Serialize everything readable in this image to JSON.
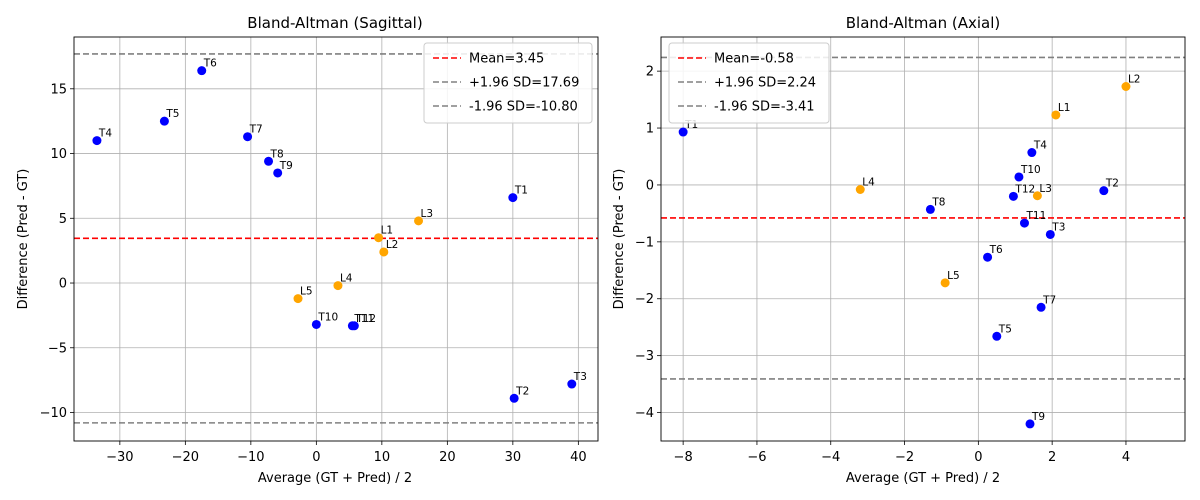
{
  "colors": {
    "thoracic": "#0000ff",
    "lumbar": "#ffa500",
    "mean_line": "#ff0000",
    "limit_line": "#808080",
    "grid": "#b0b0b0"
  },
  "chart_data": [
    {
      "type": "scatter",
      "title": "Bland-Altman (Sagittal)",
      "xlabel": "Average (GT + Pred) / 2",
      "ylabel": "Difference (Pred - GT)",
      "xlim": [
        -37,
        43
      ],
      "ylim": [
        -12.2,
        19.0
      ],
      "xticks": [
        -30,
        -20,
        -10,
        0,
        10,
        20,
        30,
        40
      ],
      "yticks": [
        -10,
        -5,
        0,
        5,
        10,
        15
      ],
      "grid": true,
      "legend_position": "top-right",
      "legend": [
        "Mean=3.45",
        "+1.96 SD=17.69",
        "-1.96 SD=-10.80"
      ],
      "mean": 3.45,
      "upper_loa": 17.69,
      "lower_loa": -10.8,
      "points": [
        {
          "label": "T1",
          "x": 30.0,
          "y": 6.6,
          "group": "thoracic"
        },
        {
          "label": "T2",
          "x": 30.2,
          "y": -8.9,
          "group": "thoracic"
        },
        {
          "label": "T3",
          "x": 39.0,
          "y": -7.8,
          "group": "thoracic"
        },
        {
          "label": "T4",
          "x": -33.5,
          "y": 11.0,
          "group": "thoracic"
        },
        {
          "label": "T5",
          "x": -23.2,
          "y": 12.5,
          "group": "thoracic"
        },
        {
          "label": "T6",
          "x": -17.5,
          "y": 16.4,
          "group": "thoracic"
        },
        {
          "label": "T7",
          "x": -10.5,
          "y": 11.3,
          "group": "thoracic"
        },
        {
          "label": "T8",
          "x": -7.3,
          "y": 9.4,
          "group": "thoracic"
        },
        {
          "label": "T9",
          "x": -5.9,
          "y": 8.5,
          "group": "thoracic"
        },
        {
          "label": "T10",
          "x": 0.0,
          "y": -3.2,
          "group": "thoracic"
        },
        {
          "label": "T11",
          "x": 5.5,
          "y": -3.3,
          "group": "thoracic"
        },
        {
          "label": "T12",
          "x": 5.8,
          "y": -3.3,
          "group": "thoracic"
        },
        {
          "label": "L1",
          "x": 9.5,
          "y": 3.5,
          "group": "lumbar"
        },
        {
          "label": "L2",
          "x": 10.3,
          "y": 2.4,
          "group": "lumbar"
        },
        {
          "label": "L3",
          "x": 15.6,
          "y": 4.8,
          "group": "lumbar"
        },
        {
          "label": "L4",
          "x": 3.3,
          "y": -0.2,
          "group": "lumbar"
        },
        {
          "label": "L5",
          "x": -2.8,
          "y": -1.2,
          "group": "lumbar"
        }
      ]
    },
    {
      "type": "scatter",
      "title": "Bland-Altman (Axial)",
      "xlabel": "Average (GT + Pred) / 2",
      "ylabel": "Difference (Pred - GT)",
      "xlim": [
        -8.6,
        5.6
      ],
      "ylim": [
        -4.5,
        2.6
      ],
      "xticks": [
        -8,
        -6,
        -4,
        -2,
        0,
        2,
        4
      ],
      "yticks": [
        -4,
        -3,
        -2,
        -1,
        0,
        1,
        2
      ],
      "grid": true,
      "legend_position": "top-left",
      "legend": [
        "Mean=-0.58",
        "+1.96 SD=2.24",
        "-1.96 SD=-3.41"
      ],
      "mean": -0.58,
      "upper_loa": 2.24,
      "lower_loa": -3.41,
      "points": [
        {
          "label": "T1",
          "x": -8.0,
          "y": 0.93,
          "group": "thoracic"
        },
        {
          "label": "T2",
          "x": 3.4,
          "y": -0.1,
          "group": "thoracic"
        },
        {
          "label": "T3",
          "x": 1.95,
          "y": -0.87,
          "group": "thoracic"
        },
        {
          "label": "T4",
          "x": 1.45,
          "y": 0.57,
          "group": "thoracic"
        },
        {
          "label": "T5",
          "x": 0.5,
          "y": -2.66,
          "group": "thoracic"
        },
        {
          "label": "T6",
          "x": 0.25,
          "y": -1.27,
          "group": "thoracic"
        },
        {
          "label": "T7",
          "x": 1.7,
          "y": -2.15,
          "group": "thoracic"
        },
        {
          "label": "T8",
          "x": -1.3,
          "y": -0.43,
          "group": "thoracic"
        },
        {
          "label": "T9",
          "x": 1.4,
          "y": -4.2,
          "group": "thoracic"
        },
        {
          "label": "T10",
          "x": 1.1,
          "y": 0.14,
          "group": "thoracic"
        },
        {
          "label": "T11",
          "x": 1.25,
          "y": -0.67,
          "group": "thoracic"
        },
        {
          "label": "T12",
          "x": 0.95,
          "y": -0.2,
          "group": "thoracic"
        },
        {
          "label": "L1",
          "x": 2.1,
          "y": 1.23,
          "group": "lumbar"
        },
        {
          "label": "L2",
          "x": 4.0,
          "y": 1.73,
          "group": "lumbar"
        },
        {
          "label": "L3",
          "x": 1.6,
          "y": -0.19,
          "group": "lumbar"
        },
        {
          "label": "L4",
          "x": -3.2,
          "y": -0.08,
          "group": "lumbar"
        },
        {
          "label": "L5",
          "x": -0.9,
          "y": -1.72,
          "group": "lumbar"
        }
      ]
    }
  ]
}
